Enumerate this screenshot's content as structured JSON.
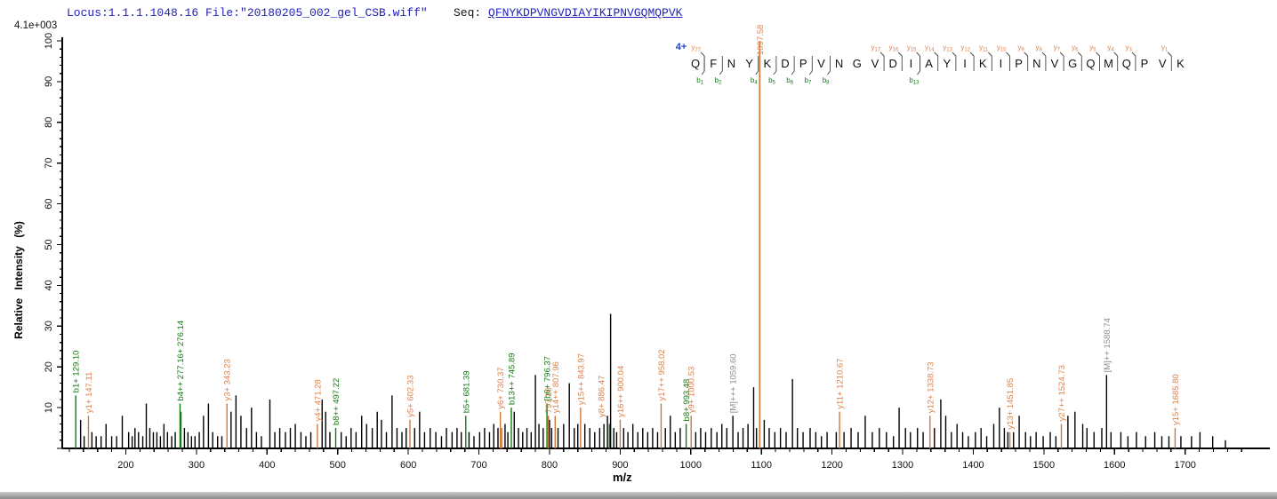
{
  "header": {
    "locus_file": "Locus:1.1.1.1048.16 File:\"20180205_002_gel_CSB.wiff\"",
    "seq_label": "Seq: ",
    "sequence": "QFNYKDPVNGVDIAYIKIPNVGQMQPVK"
  },
  "scale_note": "4.1e+003",
  "colors": {
    "y_ion": "#d8define-ignore",
    "y_ion_label": "#dd8049",
    "y_ion_peak": "#d2763a",
    "b_ion_label": "#157a15",
    "b_ion_peak": "#0f7d0f",
    "precursor_label": "#8d8d8d",
    "peak_black": "#000000",
    "header_blue": "#2222bb",
    "charge_blue": "#2244cc",
    "axis_black": "#000000"
  },
  "chart_data": {
    "type": "bar",
    "subtype": "ms2-stick-spectrum",
    "title": "",
    "xlabel": "m/z",
    "ylabel": "Relative Intensity (%)",
    "intensity_scale": "4.1e+003",
    "xlim": [
      110,
      1820
    ],
    "ylim": [
      0,
      100
    ],
    "x_major_tick_start": 200,
    "x_major_tick_end": 1700,
    "x_major_step": 100,
    "x_minor_step": 20,
    "y_major_step": 10,
    "y_minor_step": 2,
    "grid": false,
    "charge_state": "4+",
    "labeled_peaks": [
      {
        "label": "b1+ 129.10",
        "mz": 129.1,
        "i": 13,
        "t": "b"
      },
      {
        "label": "y1+ 147.11",
        "mz": 147.11,
        "i": 8,
        "t": "y"
      },
      {
        "label": "b4++ 277.16+ 276.14",
        "mz": 276.8,
        "i": 11,
        "t": "b"
      },
      {
        "label": "y3+ 343.23",
        "mz": 343.23,
        "i": 11,
        "t": "y"
      },
      {
        "label": "y4+ 471.28",
        "mz": 471.28,
        "i": 6,
        "t": "y"
      },
      {
        "label": "b8++ 497.22",
        "mz": 497.22,
        "i": 5,
        "t": "b"
      },
      {
        "label": "y5+ 602.33",
        "mz": 602.33,
        "i": 7,
        "t": "y"
      },
      {
        "label": "b5+ 681.39",
        "mz": 681.39,
        "i": 8,
        "t": "b"
      },
      {
        "label": "y6+ 730.37",
        "mz": 730.37,
        "i": 9,
        "t": "y"
      },
      {
        "label": "b13++ 745.89",
        "mz": 745.89,
        "i": 10,
        "t": "b"
      },
      {
        "label": "[b6+ 796.37",
        "mz": 796.37,
        "i": 11,
        "t": "b"
      },
      {
        "label": "797.10",
        "mz": 798.4,
        "i": 8,
        "t": "y"
      },
      {
        "label": "y14++ 807.96",
        "mz": 807.96,
        "i": 8,
        "t": "y"
      },
      {
        "label": "y15++ 843.97",
        "mz": 843.97,
        "i": 10,
        "t": "y"
      },
      {
        "label": "y8+ 886.47",
        "mz": 886.47,
        "i": 33,
        "t": "y",
        "peak": "black",
        "ly": 470,
        "dx": -7
      },
      {
        "label": "y16++ 900.04",
        "mz": 900.04,
        "i": 7,
        "t": "y"
      },
      {
        "label": "y17++ 958.02",
        "mz": 958.02,
        "i": 11,
        "t": "y"
      },
      {
        "label": "b8+ 993.48",
        "mz": 993.48,
        "i": 6,
        "t": "b"
      },
      {
        "label": "y9+ 1000.53",
        "mz": 1000.53,
        "i": 8,
        "t": "y"
      },
      {
        "label": "[M]+++ 1059.60",
        "mz": 1059.6,
        "i": 8,
        "t": "M"
      },
      {
        "label": "1097.58",
        "mz": 1097.58,
        "i": 100,
        "t": "main",
        "ly": 62
      },
      {
        "label": "y11+ 1210.67",
        "mz": 1210.67,
        "i": 9,
        "t": "y"
      },
      {
        "label": "y12+ 1338.73",
        "mz": 1338.73,
        "i": 8,
        "t": "y"
      },
      {
        "label": "y13+ 1451.85",
        "mz": 1451.85,
        "i": 4,
        "t": "y"
      },
      {
        "label": "y27++ 1524.73",
        "mz": 1524.73,
        "i": 6,
        "t": "y"
      },
      {
        "label": "[M]++ 1588.74",
        "mz": 1588.74,
        "i": 18,
        "t": "M"
      },
      {
        "label": "y15+ 1685.80",
        "mz": 1685.8,
        "i": 5,
        "t": "y"
      }
    ],
    "background_peaks": [
      [
        136,
        7
      ],
      [
        141,
        3
      ],
      [
        152,
        4
      ],
      [
        158,
        3
      ],
      [
        165,
        3
      ],
      [
        172,
        6
      ],
      [
        180,
        3
      ],
      [
        187,
        3
      ],
      [
        195,
        8
      ],
      [
        204,
        4
      ],
      [
        209,
        3
      ],
      [
        213,
        5
      ],
      [
        218,
        4
      ],
      [
        224,
        3
      ],
      [
        229,
        11
      ],
      [
        234,
        5
      ],
      [
        239,
        4
      ],
      [
        244,
        4
      ],
      [
        249,
        3
      ],
      [
        254,
        6
      ],
      [
        259,
        4
      ],
      [
        265,
        3
      ],
      [
        270,
        4
      ],
      [
        278.1,
        9,
        "b"
      ],
      [
        283,
        5
      ],
      [
        288,
        4
      ],
      [
        293,
        3
      ],
      [
        298,
        3
      ],
      [
        304,
        4
      ],
      [
        310,
        8
      ],
      [
        317,
        11
      ],
      [
        323,
        4
      ],
      [
        330,
        3
      ],
      [
        336,
        3
      ],
      [
        349,
        9
      ],
      [
        356,
        13
      ],
      [
        363,
        8
      ],
      [
        371,
        5
      ],
      [
        378,
        10
      ],
      [
        385,
        4
      ],
      [
        392,
        3
      ],
      [
        404,
        12
      ],
      [
        411,
        4
      ],
      [
        418,
        5
      ],
      [
        426,
        4
      ],
      [
        433,
        5
      ],
      [
        440,
        6
      ],
      [
        448,
        4
      ],
      [
        455,
        3
      ],
      [
        462,
        4
      ],
      [
        478,
        12
      ],
      [
        483,
        9
      ],
      [
        489,
        4
      ],
      [
        505,
        4
      ],
      [
        512,
        3
      ],
      [
        519,
        5
      ],
      [
        526,
        4
      ],
      [
        534,
        8
      ],
      [
        541,
        6
      ],
      [
        549,
        5
      ],
      [
        556,
        9
      ],
      [
        562,
        7
      ],
      [
        569,
        4
      ],
      [
        577,
        13
      ],
      [
        584,
        5
      ],
      [
        591,
        4
      ],
      [
        597,
        5
      ],
      [
        609,
        5
      ],
      [
        616,
        9
      ],
      [
        623,
        4
      ],
      [
        631,
        5
      ],
      [
        639,
        4
      ],
      [
        647,
        3
      ],
      [
        654,
        5
      ],
      [
        662,
        4
      ],
      [
        669,
        5
      ],
      [
        675,
        4
      ],
      [
        686,
        4
      ],
      [
        693,
        3
      ],
      [
        701,
        4
      ],
      [
        708,
        5
      ],
      [
        715,
        4
      ],
      [
        721,
        6
      ],
      [
        727,
        5
      ],
      [
        732.3,
        5,
        "y"
      ],
      [
        737,
        6
      ],
      [
        741,
        4
      ],
      [
        750,
        9
      ],
      [
        756,
        5
      ],
      [
        762,
        4
      ],
      [
        768,
        5
      ],
      [
        774,
        4
      ],
      [
        780,
        18
      ],
      [
        785,
        6
      ],
      [
        791,
        5
      ],
      [
        800,
        7
      ],
      [
        803,
        5
      ],
      [
        812,
        5
      ],
      [
        820,
        6
      ],
      [
        828,
        16
      ],
      [
        835,
        5
      ],
      [
        840,
        6
      ],
      [
        850,
        6
      ],
      [
        857,
        5
      ],
      [
        864,
        4
      ],
      [
        871,
        5
      ],
      [
        877,
        6
      ],
      [
        882,
        8
      ],
      [
        884.8,
        6,
        "b"
      ],
      [
        891,
        5
      ],
      [
        895,
        4
      ],
      [
        905,
        5
      ],
      [
        911,
        4
      ],
      [
        918,
        6
      ],
      [
        925,
        4
      ],
      [
        932,
        5
      ],
      [
        939,
        4
      ],
      [
        946,
        5
      ],
      [
        953,
        4
      ],
      [
        964,
        5
      ],
      [
        971,
        8
      ],
      [
        978,
        4
      ],
      [
        985,
        5
      ],
      [
        1007,
        4
      ],
      [
        1014,
        5
      ],
      [
        1021,
        4
      ],
      [
        1029,
        5
      ],
      [
        1037,
        4
      ],
      [
        1044,
        6
      ],
      [
        1051,
        5
      ],
      [
        1067,
        4
      ],
      [
        1074,
        5
      ],
      [
        1081,
        6
      ],
      [
        1089,
        15
      ],
      [
        1093,
        5
      ],
      [
        1104,
        7
      ],
      [
        1111,
        5
      ],
      [
        1119,
        4
      ],
      [
        1127,
        5
      ],
      [
        1135,
        4
      ],
      [
        1144,
        17
      ],
      [
        1151,
        5
      ],
      [
        1159,
        4
      ],
      [
        1169,
        5
      ],
      [
        1177,
        4
      ],
      [
        1185,
        3
      ],
      [
        1193,
        4
      ],
      [
        1206,
        4
      ],
      [
        1217,
        4
      ],
      [
        1227,
        5
      ],
      [
        1237,
        4
      ],
      [
        1247,
        8
      ],
      [
        1257,
        4
      ],
      [
        1267,
        5
      ],
      [
        1277,
        4
      ],
      [
        1287,
        3
      ],
      [
        1295,
        10
      ],
      [
        1304,
        5
      ],
      [
        1311,
        4
      ],
      [
        1321,
        5
      ],
      [
        1329,
        4
      ],
      [
        1345,
        5
      ],
      [
        1354,
        12
      ],
      [
        1361,
        8
      ],
      [
        1369,
        4
      ],
      [
        1377,
        6
      ],
      [
        1385,
        4
      ],
      [
        1393,
        3
      ],
      [
        1403,
        4
      ],
      [
        1411,
        5
      ],
      [
        1419,
        3
      ],
      [
        1429,
        6
      ],
      [
        1437,
        10
      ],
      [
        1444,
        5
      ],
      [
        1449,
        4
      ],
      [
        1457,
        4
      ],
      [
        1465,
        8
      ],
      [
        1474,
        4
      ],
      [
        1481,
        3
      ],
      [
        1489,
        4
      ],
      [
        1499,
        3
      ],
      [
        1509,
        4
      ],
      [
        1517,
        3
      ],
      [
        1534,
        8
      ],
      [
        1544,
        9
      ],
      [
        1555,
        6
      ],
      [
        1561,
        5
      ],
      [
        1571,
        4
      ],
      [
        1582,
        5
      ],
      [
        1595,
        4
      ],
      [
        1609,
        4
      ],
      [
        1619,
        3
      ],
      [
        1631,
        4
      ],
      [
        1644,
        3
      ],
      [
        1657,
        4
      ],
      [
        1667,
        3
      ],
      [
        1677,
        3
      ],
      [
        1694,
        3
      ],
      [
        1709,
        3
      ],
      [
        1721,
        4
      ],
      [
        1739,
        3
      ],
      [
        1757,
        2
      ]
    ],
    "sequence_ruler": {
      "charge": "4+",
      "residues": "QFNYKDPVNGVDIAYIKIPNVGQMQPVK",
      "y_ions": [
        {
          "n": 27,
          "boundary": 1
        },
        {
          "n": 17,
          "boundary": 11
        },
        {
          "n": 16,
          "boundary": 12
        },
        {
          "n": 15,
          "boundary": 13
        },
        {
          "n": 14,
          "boundary": 14
        },
        {
          "n": 13,
          "boundary": 15
        },
        {
          "n": 12,
          "boundary": 16
        },
        {
          "n": 11,
          "boundary": 17
        },
        {
          "n": 10,
          "boundary": 18
        },
        {
          "n": 9,
          "boundary": 19
        },
        {
          "n": 8,
          "boundary": 20
        },
        {
          "n": 7,
          "boundary": 21
        },
        {
          "n": 6,
          "boundary": 22
        },
        {
          "n": 5,
          "boundary": 23
        },
        {
          "n": 4,
          "boundary": 24
        },
        {
          "n": 3,
          "boundary": 25
        },
        {
          "n": 1,
          "boundary": 27
        }
      ],
      "b_ions": [
        {
          "n": 1,
          "boundary": 1
        },
        {
          "n": 2,
          "boundary": 2
        },
        {
          "n": 4,
          "boundary": 4
        },
        {
          "n": 5,
          "boundary": 5
        },
        {
          "n": 6,
          "boundary": 6
        },
        {
          "n": 7,
          "boundary": 7
        },
        {
          "n": 8,
          "boundary": 8
        },
        {
          "n": 13,
          "boundary": 13
        }
      ]
    }
  }
}
